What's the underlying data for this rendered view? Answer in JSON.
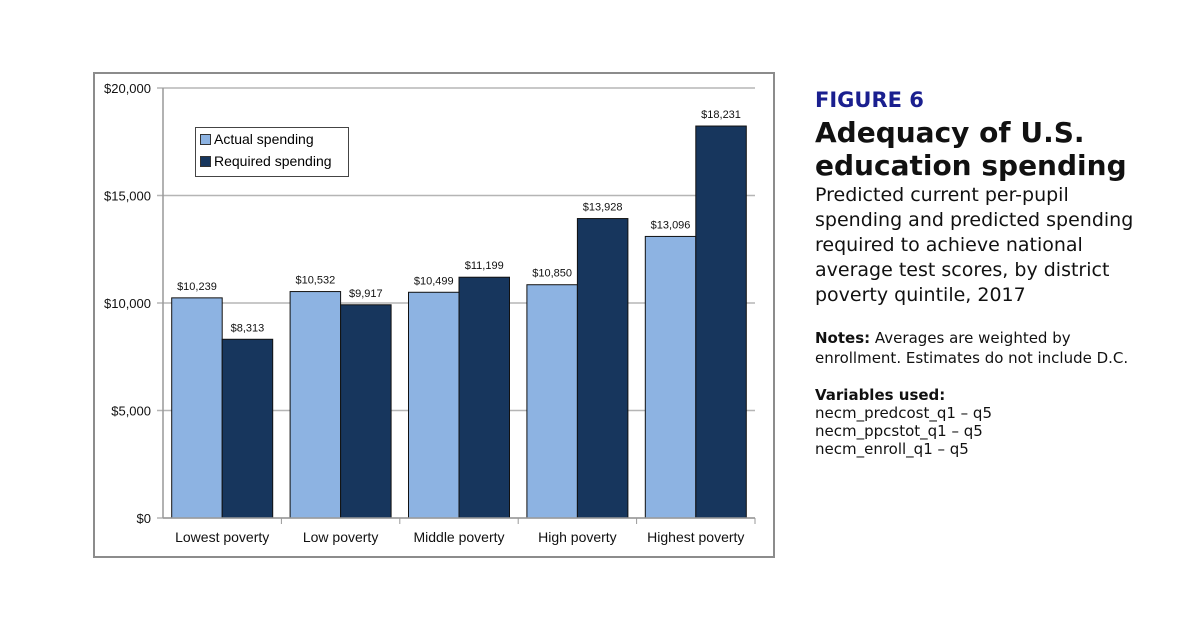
{
  "figure_label": "FIGURE 6",
  "title": "Adequacy of U.S. education spending",
  "subtitle": "Predicted current per-pupil spending and predicted spending required to achieve national average test scores, by district poverty quintile, 2017",
  "notes": {
    "label": "Notes:",
    "text": "Averages are weighted by enrollment. Estimates do not include D.C."
  },
  "variables": {
    "label": "Variables used:",
    "items": [
      "necm_predcost_q1 – q5",
      "necm_ppcstot_q1 – q5",
      "necm_enroll_q1 – q5"
    ]
  },
  "chart_data": {
    "type": "bar",
    "categories": [
      "Lowest poverty",
      "Low poverty",
      "Middle poverty",
      "High poverty",
      "Highest poverty"
    ],
    "series": [
      {
        "name": "Actual spending",
        "color": "#8db3e2",
        "values": [
          10239,
          10532,
          10499,
          10850,
          13096
        ],
        "labels": [
          "$10,239",
          "$10,532",
          "$10,499",
          "$10,850",
          "$13,096"
        ]
      },
      {
        "name": "Required spending",
        "color": "#17365d",
        "values": [
          8313,
          9917,
          11199,
          13928,
          18231
        ],
        "labels": [
          "$8,313",
          "$9,917",
          "$11,199",
          "$13,928",
          "$18,231"
        ]
      }
    ],
    "ylim": [
      0,
      20000
    ],
    "yticks": [
      0,
      5000,
      10000,
      15000,
      20000
    ],
    "ytick_labels": [
      "$0",
      "$5,000",
      "$10,000",
      "$15,000",
      "$20,000"
    ],
    "grid": true,
    "legend": "top-left"
  }
}
